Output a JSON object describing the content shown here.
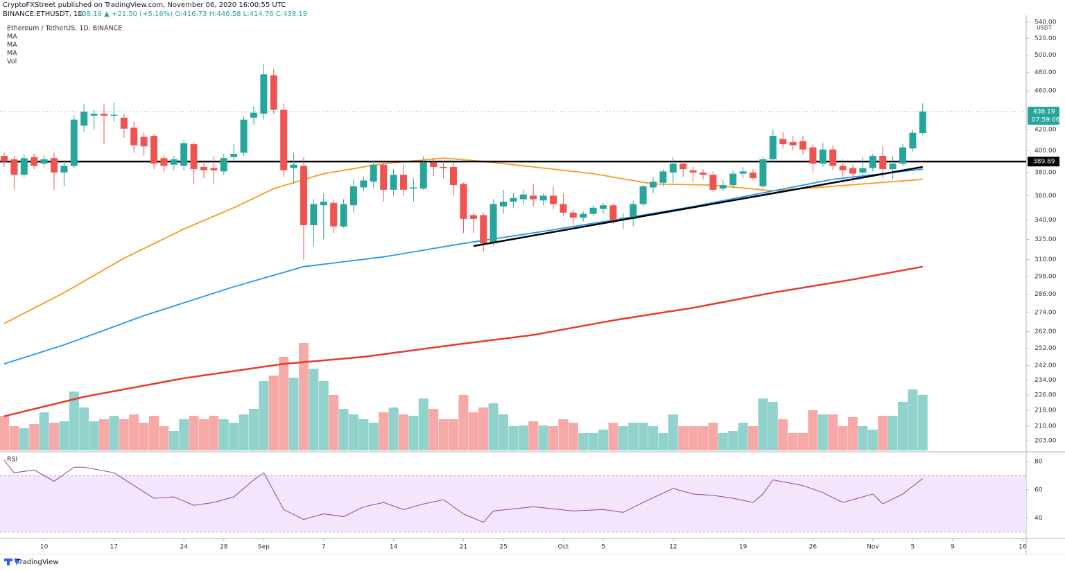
{
  "header": {
    "publisher": "CryptoFXStreet published on TradingView.com, November 06, 2020 16:00:55 UTC",
    "symbol": "BINANCE:ETHUSDT, 1D",
    "quote": "438.19 ▲ +21.50 (+5.16%) O:416.73 H:446.58 L:414.76 C:438.19"
  },
  "footer": {
    "brand": "TradingView"
  },
  "chart_data": {
    "type": "candlestick",
    "title": "Ethereum / TetherUS, 1D, BINANCE",
    "y_unit": "USDT",
    "log_scale": true,
    "up_color": "#26a69a",
    "down_color": "#ef5350",
    "categories": [
      null,
      null,
      null,
      null,
      "10",
      null,
      null,
      null,
      null,
      null,
      null,
      "17",
      null,
      null,
      null,
      null,
      null,
      null,
      "24",
      null,
      null,
      null,
      "28",
      null,
      null,
      null,
      "Sep",
      null,
      null,
      null,
      null,
      null,
      "7",
      null,
      null,
      null,
      null,
      null,
      null,
      "14",
      null,
      null,
      null,
      null,
      null,
      null,
      "21",
      null,
      null,
      null,
      "25",
      null,
      null,
      null,
      null,
      null,
      "Oct",
      null,
      null,
      null,
      "5",
      null,
      null,
      null,
      null,
      null,
      null,
      "12",
      null,
      null,
      null,
      null,
      null,
      null,
      "19",
      null,
      null,
      null,
      null,
      null,
      null,
      "26",
      null,
      null,
      null,
      null,
      null,
      "Nov",
      null,
      null,
      null,
      "5",
      null,
      null,
      null,
      "9",
      null,
      null,
      null,
      null,
      null,
      null,
      "16"
    ],
    "open": [
      395,
      392,
      378,
      394,
      388,
      393,
      380,
      386,
      424,
      434,
      436,
      434,
      432,
      422,
      413,
      414,
      393,
      387,
      386,
      406,
      385,
      384,
      381,
      394,
      398,
      432,
      436,
      477,
      440,
      384,
      386,
      336,
      352,
      354,
      335,
      352,
      367,
      372,
      387,
      365,
      378,
      366,
      366,
      389,
      385,
      385,
      370,
      344,
      344,
      322,
      351,
      355,
      357,
      360,
      356,
      360,
      353,
      346,
      342,
      345,
      349,
      352,
      341,
      341,
      353,
      367,
      371,
      380,
      388,
      382,
      380,
      378,
      366,
      369,
      379,
      380,
      368,
      392,
      411,
      408,
      409,
      403,
      388,
      401,
      386,
      384,
      380,
      384,
      395,
      383,
      388,
      402,
      416.73,
      null,
      null,
      null,
      null,
      null,
      null,
      null,
      null,
      null,
      null
    ],
    "high": [
      398,
      395,
      397,
      397,
      396,
      398,
      391,
      434,
      446,
      440,
      446,
      448,
      436,
      428,
      418,
      416,
      396,
      395,
      410,
      408,
      390,
      395,
      397,
      406,
      434,
      444,
      490,
      484,
      446,
      398,
      394,
      357,
      362,
      357,
      357,
      374,
      376,
      391,
      390,
      383,
      388,
      375,
      395,
      393,
      390,
      389,
      371,
      346,
      346,
      357,
      365,
      362,
      365,
      370,
      362,
      368,
      362,
      348,
      347,
      352,
      354,
      353,
      346,
      356,
      369,
      376,
      383,
      394,
      390,
      385,
      383,
      381,
      374,
      382,
      385,
      383,
      394,
      420,
      418,
      414,
      414,
      406,
      407,
      405,
      392,
      387,
      394,
      397,
      404,
      395,
      406,
      420,
      446.58,
      null,
      null,
      null,
      null,
      null,
      null,
      null,
      null,
      null,
      null
    ],
    "low": [
      385,
      365,
      376,
      383,
      385,
      365,
      368,
      384,
      418,
      420,
      406,
      428,
      412,
      398,
      395,
      383,
      380,
      382,
      382,
      370,
      375,
      370,
      378,
      390,
      395,
      425,
      430,
      436,
      376,
      370,
      310,
      320,
      325,
      330,
      334,
      346,
      364,
      366,
      355,
      360,
      360,
      355,
      365,
      377,
      375,
      360,
      330,
      330,
      316,
      320,
      345,
      350,
      352,
      351,
      352,
      349,
      343,
      336,
      339,
      343,
      345,
      337,
      333,
      335,
      351,
      362,
      368,
      371,
      376,
      372,
      374,
      363,
      364,
      366,
      375,
      373,
      366,
      389,
      402,
      400,
      396,
      380,
      385,
      382,
      376,
      372,
      377,
      381,
      375,
      374,
      386,
      399,
      414.76,
      null,
      null,
      null,
      null,
      null,
      null,
      null,
      null,
      null,
      null
    ],
    "close": [
      390,
      378,
      393,
      386,
      392,
      380,
      386,
      430,
      438,
      436,
      434,
      435,
      421,
      405,
      404,
      388,
      386,
      392,
      407,
      383,
      382,
      382,
      393,
      397,
      430,
      437,
      478,
      440,
      382,
      387,
      336,
      353,
      355,
      335,
      353,
      368,
      373,
      387,
      365,
      378,
      365,
      367,
      389,
      385,
      384,
      369,
      341,
      341,
      322,
      353,
      355,
      358,
      361,
      357,
      360,
      353,
      346,
      342,
      345,
      350,
      352,
      340,
      342,
      353,
      368,
      372,
      381,
      388,
      383,
      380,
      378,
      365,
      369,
      379,
      381,
      375,
      392,
      414,
      406,
      405,
      401,
      388,
      401,
      386,
      382,
      379,
      384,
      395,
      383,
      388,
      403,
      417,
      438.19,
      null,
      null,
      null,
      null,
      null,
      null,
      null,
      null,
      null,
      null
    ],
    "ylim": [
      198.5,
      548.8
    ],
    "yticks": [
      {
        "value": 540,
        "label": "540.00"
      },
      {
        "value": 520,
        "label": "520.00"
      },
      {
        "value": 500,
        "label": "500.00"
      },
      {
        "value": 480,
        "label": "480.00"
      },
      {
        "value": 460,
        "label": "460.00"
      },
      {
        "value": 420,
        "label": "420.00"
      },
      {
        "value": 400,
        "label": "400.00"
      },
      {
        "value": 380,
        "label": "380.00"
      },
      {
        "value": 360,
        "label": "360.00"
      },
      {
        "value": 340,
        "label": "340.00"
      },
      {
        "value": 325,
        "label": "325.00"
      },
      {
        "value": 310,
        "label": "310.00"
      },
      {
        "value": 298,
        "label": "298.00"
      },
      {
        "value": 286,
        "label": "286.00"
      },
      {
        "value": 274,
        "label": "274.00"
      },
      {
        "value": 262,
        "label": "262.00"
      },
      {
        "value": 252,
        "label": "252.00"
      },
      {
        "value": 242,
        "label": "242.00"
      },
      {
        "value": 234,
        "label": "234.00"
      },
      {
        "value": 226,
        "label": "226.00"
      },
      {
        "value": 218,
        "label": "218.00"
      },
      {
        "value": 210,
        "label": "210.00"
      },
      {
        "value": 203,
        "label": "203.00"
      }
    ],
    "volume": {
      "name": "Vol",
      "ylim": [
        0,
        160
      ],
      "up_color": "#92d2cc",
      "down_color": "#f7a9a7",
      "values": [
        50,
        35,
        32,
        38,
        55,
        40,
        42,
        85,
        62,
        42,
        45,
        50,
        45,
        52,
        40,
        50,
        35,
        28,
        45,
        50,
        45,
        50,
        45,
        40,
        52,
        60,
        100,
        108,
        135,
        105,
        155,
        118,
        100,
        80,
        60,
        52,
        45,
        40,
        55,
        62,
        52,
        50,
        75,
        60,
        45,
        45,
        80,
        55,
        62,
        68,
        52,
        35,
        36,
        42,
        36,
        35,
        45,
        40,
        25,
        25,
        30,
        40,
        35,
        40,
        40,
        35,
        25,
        52,
        35,
        35,
        35,
        40,
        25,
        28,
        40,
        35,
        75,
        70,
        45,
        25,
        25,
        58,
        52,
        52,
        35,
        48,
        35,
        30,
        50,
        50,
        70,
        88,
        80,
        null,
        null,
        null,
        null,
        null,
        null,
        null,
        null,
        null,
        null
      ]
    },
    "overlays": [
      {
        "name": "MA",
        "color": "#f89a1e",
        "x": [
          0,
          6,
          12,
          18,
          23,
          27,
          32,
          38,
          44,
          48,
          53,
          59,
          65,
          71,
          77,
          83,
          89,
          92
        ],
        "values": [
          267,
          287,
          311,
          333,
          350,
          366,
          379,
          388,
          393,
          390,
          385,
          379,
          370,
          369,
          364,
          368,
          372,
          374
        ]
      },
      {
        "name": "MA",
        "color": "#2196f3",
        "x": [
          0,
          6,
          14,
          23,
          30,
          38,
          46,
          53,
          61,
          69,
          77,
          83,
          92
        ],
        "values": [
          243,
          254,
          272,
          291,
          305,
          312,
          322,
          330,
          340,
          351,
          364,
          374,
          383
        ]
      },
      {
        "name": "MA",
        "color": "#e53b2c",
        "x": [
          0,
          8,
          18,
          28,
          36,
          45,
          53,
          61,
          69,
          77,
          85,
          92
        ],
        "values": [
          215,
          225,
          235,
          243,
          247,
          254,
          260,
          269,
          277,
          287,
          296,
          305
        ]
      }
    ],
    "hline": {
      "value": 389.89,
      "color": "#000000"
    },
    "trendlines": [
      {
        "color": "#000000",
        "x": [
          47,
          92
        ],
        "values": [
          320,
          385
        ]
      }
    ],
    "countdown": "07:59:06",
    "rsi": {
      "name": "RSI",
      "color": "#8e3fa8",
      "band_color": "#f3e5fc",
      "band": [
        30,
        70
      ],
      "ylim": [
        29,
        85.4
      ],
      "yticks": [
        40,
        60,
        80
      ],
      "x": [
        0,
        1,
        3,
        5,
        7,
        8,
        11,
        13,
        15,
        17,
        19,
        21,
        23,
        25,
        26,
        28,
        30,
        32,
        34,
        36,
        38,
        40,
        42,
        44,
        46,
        48,
        49,
        53,
        57,
        60,
        62,
        64,
        67,
        69,
        71,
        73,
        75,
        76,
        77,
        80,
        82,
        84,
        87,
        88,
        90,
        92
      ],
      "values": [
        81,
        72,
        74,
        66,
        76,
        76,
        72,
        63,
        54,
        55,
        49,
        51,
        55,
        67,
        72,
        46,
        39,
        43,
        41,
        48,
        51,
        46,
        50,
        53,
        43,
        37,
        45,
        48,
        45,
        46,
        44,
        51,
        61,
        57,
        56,
        54,
        51,
        57,
        67,
        63,
        58,
        51,
        57,
        50,
        57,
        68
      ]
    }
  }
}
